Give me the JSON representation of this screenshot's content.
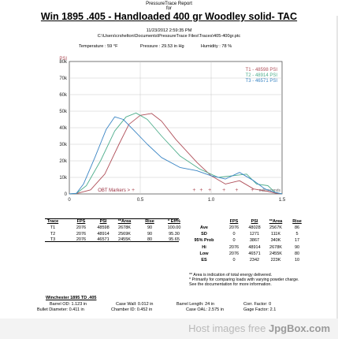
{
  "header": {
    "report_title": "PressureTrace Report",
    "for_label": "for",
    "main_title": "Win 1895 .405 - Handloaded 400 gr Woodley solid- TAC",
    "date": "11/23/2012 2:59:35 PM",
    "path": "C:\\Users\\crshelton\\Documents\\PressureTrace Files\\Traces\\405-400gr.ptc",
    "temperature": "Temperature :  59 °F",
    "pressure": "Pressure :  29.53 in Hg",
    "humidity": "Humidity :  78 %"
  },
  "chart_data": {
    "type": "line",
    "ylabel": "PSI",
    "xlabel": "milliseconds",
    "y_ticks": [
      "80k",
      "70k",
      "60k",
      "50k",
      "40k",
      "30k",
      "20k",
      "10k",
      "0"
    ],
    "x_ticks": [
      "0",
      "0.5",
      "1.0",
      "1.5"
    ],
    "ylim": [
      0,
      80000
    ],
    "xlim": [
      0,
      1.5
    ],
    "obt_label": "OBT Markers >",
    "obt_markers": [
      0.45,
      0.88,
      0.93,
      0.99,
      1.09,
      1.18,
      1.29
    ],
    "legend_position": "top-right",
    "series": [
      {
        "name": "T1 - 48598 PSI",
        "color": "#b0505a",
        "x": [
          0.0,
          0.05,
          0.15,
          0.25,
          0.35,
          0.42,
          0.5,
          0.58,
          0.65,
          0.75,
          0.9,
          1.0,
          1.1,
          1.2,
          1.3,
          1.4,
          1.45,
          1.5
        ],
        "y": [
          0,
          200,
          2500,
          12000,
          30000,
          42000,
          47500,
          48598,
          44000,
          33000,
          19000,
          11000,
          6000,
          8000,
          3000,
          1500,
          500,
          0
        ]
      },
      {
        "name": "T2 - 48914 PSI",
        "color": "#4fae8c",
        "x": [
          0.0,
          0.05,
          0.12,
          0.22,
          0.32,
          0.4,
          0.47,
          0.55,
          0.65,
          0.78,
          0.92,
          1.05,
          1.15,
          1.25,
          1.32,
          1.4,
          1.45,
          1.5
        ],
        "y": [
          0,
          300,
          5000,
          20000,
          38000,
          46500,
          48914,
          45000,
          35000,
          23000,
          15000,
          10000,
          11000,
          12000,
          6000,
          5000,
          1000,
          0
        ]
      },
      {
        "name": "T3 - 46571 PSI",
        "color": "#3a85c4",
        "x": [
          0.0,
          0.05,
          0.1,
          0.18,
          0.26,
          0.32,
          0.38,
          0.46,
          0.55,
          0.65,
          0.78,
          0.9,
          1.0,
          1.1,
          1.2,
          1.3,
          1.38,
          1.45,
          1.5
        ],
        "y": [
          0,
          400,
          6000,
          22000,
          39000,
          46571,
          45000,
          38000,
          30000,
          22000,
          16000,
          14000,
          11000,
          9000,
          13000,
          8000,
          3000,
          1000,
          0
        ]
      }
    ]
  },
  "stats_table": {
    "headers": [
      "Trace",
      "FPS",
      "PSI",
      "**Area",
      "Rise",
      "* Eff%"
    ],
    "rows": [
      [
        "T1",
        "2076",
        "48598",
        "2678K",
        "90",
        "100.00"
      ],
      [
        "T2",
        "2076",
        "48914",
        "2569K",
        "90",
        "95.30"
      ],
      [
        "T3",
        "2076",
        "46571",
        "2455K",
        "80",
        "95.65"
      ]
    ]
  },
  "summary_table": {
    "headers": [
      "",
      "FPS",
      "PSI",
      "**Area",
      "Rise"
    ],
    "rows": [
      [
        "Ave",
        "2076",
        "48028",
        "2567K",
        "86"
      ],
      [
        "SD",
        "0",
        "1271",
        "111K",
        "5"
      ],
      [
        "95% Prob",
        "0",
        "3867",
        "340K",
        "17"
      ],
      [
        "Hi",
        "2076",
        "48914",
        "2678K",
        "90"
      ],
      [
        "Low",
        "2076",
        "46571",
        "2455K",
        "80"
      ],
      [
        "ES",
        "0",
        "2342",
        "223K",
        "10"
      ]
    ]
  },
  "notes": [
    "** Area is indication of total energy delivered.",
    "* Primarily for comparing loads with varying powder charge.",
    "See the documentation for more information."
  ],
  "rifle": {
    "name": "Winchester 1895 TD .405",
    "barrel_od": "Barrel OD:   1.123 in",
    "bullet_diameter": "Bullet Diameter:   0.411 in",
    "case_wall": "Case Wall:   0.012 in",
    "chamber_id": "Chamber ID:   0.452 in",
    "barrel_length": "Barrel Length:     24 in",
    "case_oal": "Case OAL:   2.575 in",
    "corr_factor": "Corr. Factor:      0",
    "gage_factor": "Gage Factor:      2.1"
  },
  "watermark": {
    "prefix": "Host images free ",
    "brand": "JpgBox.com"
  }
}
